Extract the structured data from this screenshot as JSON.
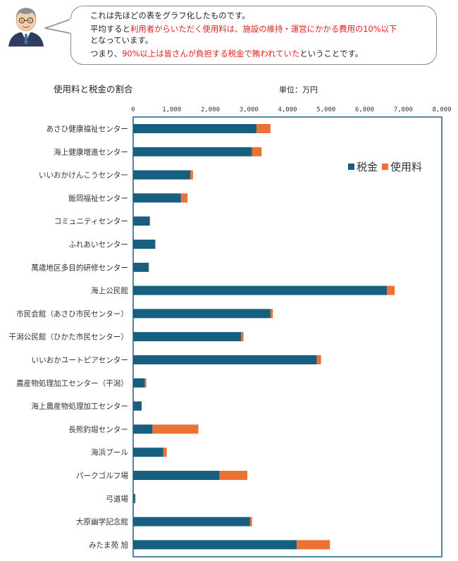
{
  "speech": {
    "line1": "これは先ほどの表をグラフ化したものです。",
    "line2_pre": "平均すると",
    "line2_highlight": "利用者からいただく使用料は、施設の維持・運営にかかる費用の10%以下",
    "line2_post": "となっています。",
    "line3_pre": "つまり、",
    "line3_highlight": "90%以上は皆さんが負担する税金で賄われていた",
    "line3_post": "ということです。"
  },
  "colors": {
    "tax": "#165f7e",
    "fee": "#eb7232",
    "highlight": "#e0201e",
    "frame": "#1f5f7c"
  },
  "chart_data": {
    "type": "bar",
    "orientation": "horizontal",
    "stacked": true,
    "title": "使用料と税金の割合",
    "unit": "単位：万円",
    "xlim": [
      0,
      8000
    ],
    "x_ticks": [
      0,
      1000,
      2000,
      3000,
      4000,
      5000,
      6000,
      7000,
      8000
    ],
    "x_tick_labels": [
      "0",
      "1,000",
      "2,000",
      "3,000",
      "4,000",
      "5,000",
      "6,000",
      "7,000",
      "8,000"
    ],
    "legend_position": "top-right",
    "categories": [
      "あさひ健康福祉センター",
      "海上健康増進センター",
      "いいおかけんこうセンター",
      "飯岡福祉センター",
      "コミュニティセンター",
      "ふれあいセンター",
      "萬歳地区多目的研修センター",
      "海上公民館",
      "市民会館（あさひ市民センター）",
      "干潟公民館（ひかた市民センター）",
      "いいおかユートピアセンター",
      "農産物処理加工センター（干潟）",
      "海上農産物処理加工センター",
      "長熊釣堀センター",
      "海浜プール",
      "パークゴルフ場",
      "弓道場",
      "大原幽学記念館",
      "みたま苑 旭"
    ],
    "series": [
      {
        "name": "税金",
        "values": [
          3200,
          3080,
          1480,
          1240,
          420,
          570,
          400,
          6580,
          3560,
          2800,
          4760,
          300,
          220,
          500,
          780,
          2240,
          50,
          3030,
          4240
        ]
      },
      {
        "name": "使用料",
        "values": [
          360,
          250,
          70,
          170,
          20,
          10,
          10,
          200,
          60,
          60,
          110,
          40,
          0,
          1190,
          90,
          720,
          10,
          50,
          860
        ]
      }
    ]
  }
}
